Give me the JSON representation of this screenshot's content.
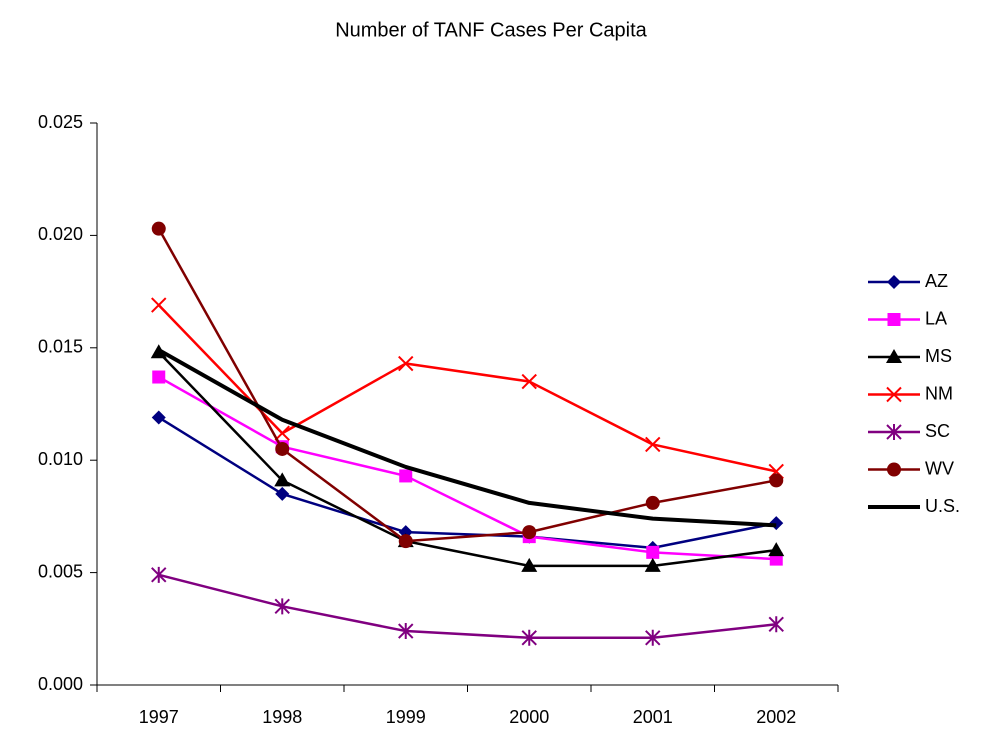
{
  "chart_data": {
    "type": "line",
    "title": "Number of TANF Cases Per Capita",
    "categories": [
      "1997",
      "1998",
      "1999",
      "2000",
      "2001",
      "2002"
    ],
    "ylim": [
      0,
      0.025
    ],
    "yticks": [
      {
        "value": 0,
        "label": "0.000"
      },
      0.005,
      {
        "value": 0.01,
        "label": "0.010"
      },
      0.015,
      {
        "value": 0.02,
        "label": "0.020"
      },
      0.025
    ],
    "series": [
      {
        "name": "AZ",
        "color": "#000080",
        "marker": "diamond",
        "values": [
          0.0119,
          0.0085,
          0.0068,
          0.0066,
          0.0061,
          0.0072
        ]
      },
      {
        "name": "LA",
        "color": "#ff00ff",
        "marker": "square",
        "values": [
          0.0137,
          0.0106,
          0.0093,
          0.0066,
          0.0059,
          0.0056
        ]
      },
      {
        "name": "MS",
        "color": "#000000",
        "marker": "triangle",
        "values": [
          0.0148,
          0.0091,
          0.0064,
          0.0053,
          0.0053,
          0.006
        ]
      },
      {
        "name": "NM",
        "color": "#ff0000",
        "marker": "x",
        "values": [
          0.0169,
          0.0112,
          0.0143,
          0.0135,
          0.0107,
          0.0095
        ]
      },
      {
        "name": "SC",
        "color": "#800080",
        "marker": "asterisk",
        "values": [
          0.0049,
          0.0035,
          0.0024,
          0.0021,
          0.0021,
          0.0027
        ]
      },
      {
        "name": "WV",
        "color": "#800000",
        "marker": "circle",
        "values": [
          0.0203,
          0.0105,
          0.0064,
          0.0068,
          0.0081,
          0.0091
        ]
      },
      {
        "name": "U.S.",
        "color": "#000000",
        "marker": "none",
        "width": 4,
        "values": [
          0.0149,
          0.0118,
          0.0097,
          0.0081,
          0.0074,
          0.0071
        ]
      }
    ]
  }
}
